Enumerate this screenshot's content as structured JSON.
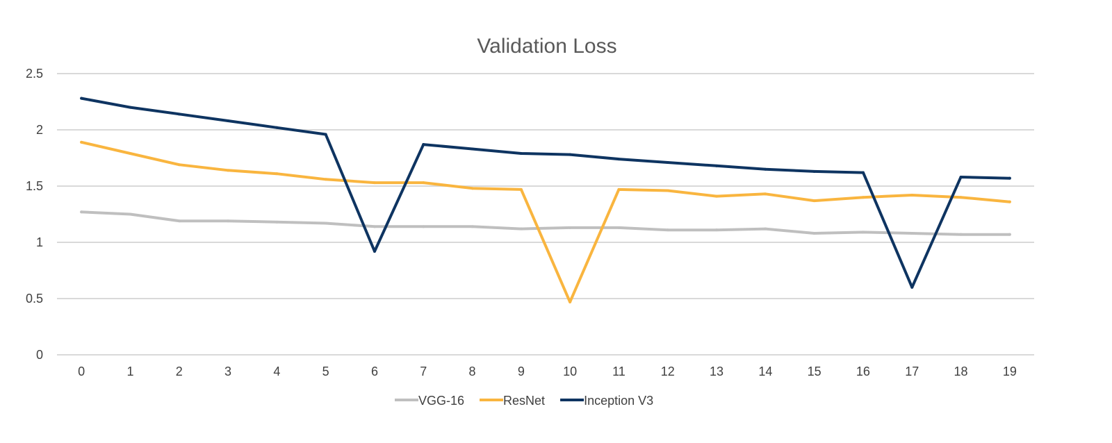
{
  "chart_data": {
    "type": "line",
    "title": "Validation Loss",
    "xlabel": "",
    "ylabel": "",
    "categories": [
      "0",
      "1",
      "2",
      "3",
      "4",
      "5",
      "6",
      "7",
      "8",
      "9",
      "10",
      "11",
      "12",
      "13",
      "14",
      "15",
      "16",
      "17",
      "18",
      "19"
    ],
    "ylim": [
      0,
      2.5
    ],
    "yticks": [
      "0",
      "0.5",
      "1",
      "1.5",
      "2",
      "2.5"
    ],
    "grid": true,
    "legend": "bottom",
    "series": [
      {
        "name": "VGG-16",
        "color": "#BFBFBF",
        "values": [
          1.27,
          1.25,
          1.19,
          1.19,
          1.18,
          1.17,
          1.14,
          1.14,
          1.14,
          1.12,
          1.13,
          1.13,
          1.11,
          1.11,
          1.12,
          1.08,
          1.09,
          1.08,
          1.07,
          1.07
        ]
      },
      {
        "name": "ResNet",
        "color": "#F9B53F",
        "values": [
          1.89,
          1.79,
          1.69,
          1.64,
          1.61,
          1.56,
          1.53,
          1.53,
          1.48,
          1.47,
          0.47,
          1.47,
          1.46,
          1.41,
          1.43,
          1.37,
          1.4,
          1.42,
          1.4,
          1.36
        ]
      },
      {
        "name": "Inception V3",
        "color": "#0E3461",
        "values": [
          2.28,
          2.2,
          2.14,
          2.08,
          2.02,
          1.96,
          0.92,
          1.87,
          1.83,
          1.79,
          1.78,
          1.74,
          1.71,
          1.68,
          1.65,
          1.63,
          1.62,
          0.6,
          1.58,
          1.57
        ]
      }
    ]
  }
}
